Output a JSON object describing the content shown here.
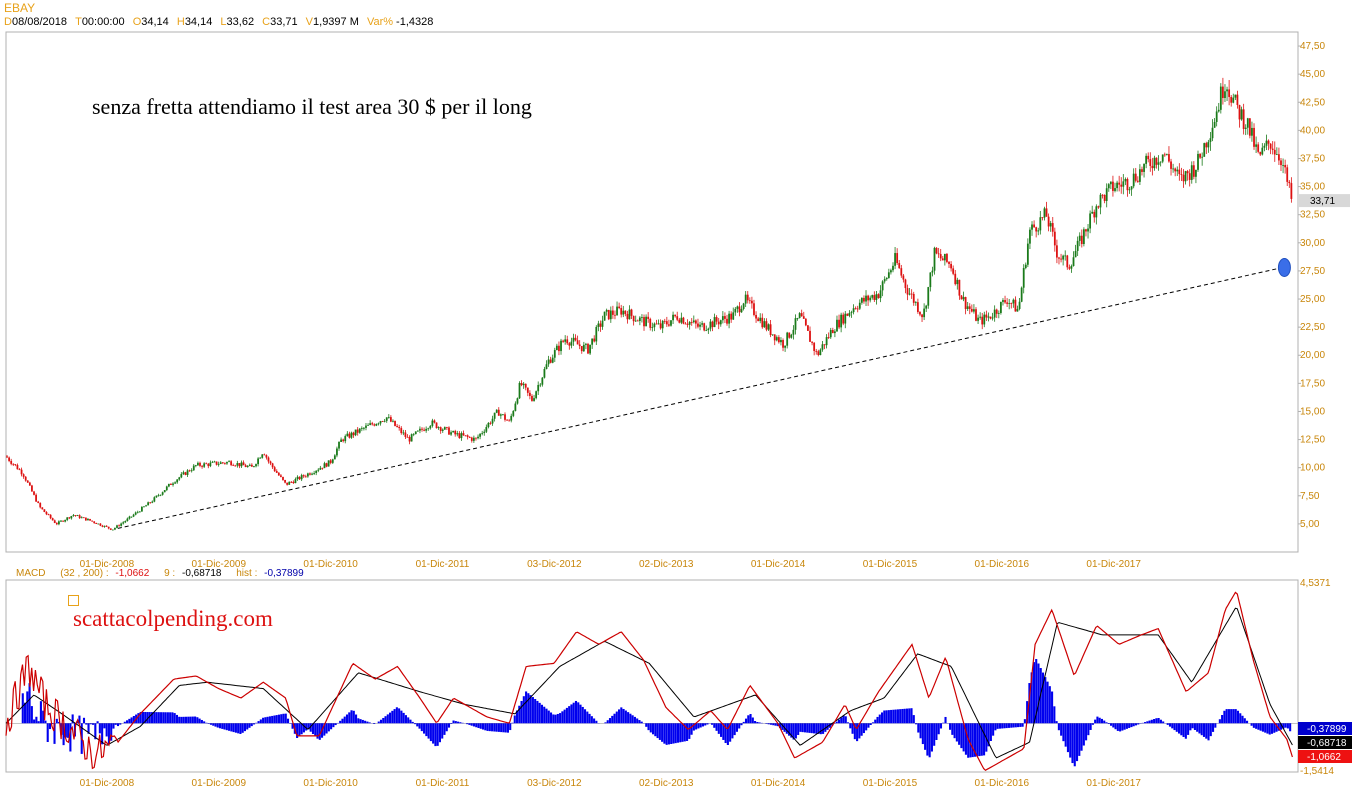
{
  "header": {
    "symbol": "EBAY",
    "fields": [
      {
        "k": "D",
        "v": "08/08/2018"
      },
      {
        "k": "T",
        "v": "00:00:00"
      },
      {
        "k": "O",
        "v": "34,14"
      },
      {
        "k": "H",
        "v": "34,14"
      },
      {
        "k": "L",
        "v": "33,62"
      },
      {
        "k": "C",
        "v": "33,71"
      },
      {
        "k": "V",
        "v": "1,9397 M"
      },
      {
        "k": "Var%",
        "v": "-1,4328"
      }
    ]
  },
  "annotation_text": "senza fretta attendiamo il test area 30 $ per il long",
  "watermark": "scattacolpending.com",
  "colors": {
    "accent": "#e8a21a",
    "up_candle": "#1a7a1a",
    "down_candle": "#dd1111",
    "macd_line": "#cc0000",
    "hist": "#0000ee",
    "marker": "#3a6ee8",
    "label_text": "#c8860a"
  },
  "chart_data": [
    {
      "type": "candlestick",
      "title": "EBAY",
      "ylim": [
        2.5,
        48.75
      ],
      "y_ticks": [
        "5,00",
        "7,50",
        "10,00",
        "12,50",
        "15,00",
        "17,50",
        "20,00",
        "22,50",
        "25,00",
        "27,50",
        "30,00",
        "32,50",
        "35,00",
        "37,50",
        "40,00",
        "42,50",
        "45,00",
        "47,50"
      ],
      "x_ticks": [
        "01-Dic-2008",
        "01-Dic-2009",
        "01-Dic-2010",
        "01-Dic-2011",
        "03-Dic-2012",
        "02-Dic-2013",
        "01-Dic-2014",
        "01-Dic-2015",
        "01-Dic-2016",
        "01-Dic-2017"
      ],
      "last_price_label": "33,71",
      "price_path": [
        [
          2008.0,
          11.0
        ],
        [
          2008.15,
          9.5
        ],
        [
          2008.3,
          6.5
        ],
        [
          2008.45,
          5.0
        ],
        [
          2008.6,
          5.8
        ],
        [
          2008.75,
          5.3
        ],
        [
          2008.95,
          4.5
        ],
        [
          2009.1,
          5.5
        ],
        [
          2009.3,
          7.0
        ],
        [
          2009.5,
          8.8
        ],
        [
          2009.7,
          10.2
        ],
        [
          2010.0,
          10.5
        ],
        [
          2010.2,
          10.0
        ],
        [
          2010.3,
          11.5
        ],
        [
          2010.35,
          10.5
        ],
        [
          2010.5,
          8.5
        ],
        [
          2010.65,
          9.2
        ],
        [
          2010.9,
          10.5
        ],
        [
          2011.0,
          12.5
        ],
        [
          2011.2,
          13.5
        ],
        [
          2011.4,
          14.5
        ],
        [
          2011.6,
          12.5
        ],
        [
          2011.8,
          14.0
        ],
        [
          2012.0,
          13.0
        ],
        [
          2012.2,
          12.5
        ],
        [
          2012.4,
          15.0
        ],
        [
          2012.5,
          14.0
        ],
        [
          2012.6,
          17.5
        ],
        [
          2012.7,
          16.0
        ],
        [
          2012.85,
          19.5
        ],
        [
          2013.0,
          21.5
        ],
        [
          2013.2,
          20.5
        ],
        [
          2013.35,
          23.5
        ],
        [
          2013.5,
          24.0
        ],
        [
          2013.7,
          23.0
        ],
        [
          2013.85,
          22.5
        ],
        [
          2014.0,
          23.5
        ],
        [
          2014.2,
          22.5
        ],
        [
          2014.5,
          23.5
        ],
        [
          2014.6,
          25.0
        ],
        [
          2014.8,
          22.5
        ],
        [
          2014.95,
          21.0
        ],
        [
          2015.1,
          23.5
        ],
        [
          2015.25,
          20.0
        ],
        [
          2015.4,
          22.5
        ],
        [
          2015.6,
          24.5
        ],
        [
          2015.8,
          25.5
        ],
        [
          2015.95,
          28.5
        ],
        [
          2016.05,
          26.0
        ],
        [
          2016.2,
          23.5
        ],
        [
          2016.3,
          29.0
        ],
        [
          2016.45,
          28.0
        ],
        [
          2016.55,
          25.0
        ],
        [
          2016.7,
          23.0
        ],
        [
          2016.8,
          23.5
        ],
        [
          2016.95,
          25.0
        ],
        [
          2017.05,
          24.0
        ],
        [
          2017.15,
          31.0
        ],
        [
          2017.3,
          32.5
        ],
        [
          2017.4,
          29.0
        ],
        [
          2017.5,
          28.0
        ],
        [
          2017.6,
          30.0
        ],
        [
          2017.75,
          33.5
        ],
        [
          2017.9,
          35.0
        ],
        [
          2018.05,
          35.5
        ],
        [
          2018.2,
          37.0
        ],
        [
          2018.35,
          38.0
        ],
        [
          2018.5,
          35.5
        ],
        [
          2018.65,
          37.0
        ],
        [
          2018.8,
          41.0
        ],
        [
          2018.9,
          44.5
        ],
        [
          2019.0,
          42.0
        ],
        [
          2019.1,
          40.5
        ],
        [
          2019.2,
          37.5
        ],
        [
          2019.3,
          39.0
        ],
        [
          2019.4,
          37.5
        ],
        [
          2019.5,
          33.5
        ]
      ],
      "trendline": {
        "from": [
          2009.0,
          4.6
        ],
        "to": [
          2019.5,
          28.0
        ],
        "style": "dashed"
      },
      "target_marker": {
        "x": 2019.5,
        "y": 27.8
      }
    },
    {
      "type": "line",
      "title": "MACD",
      "params": "(32 , 200) :",
      "values": [
        {
          "label": "",
          "value": "-1,0662"
        },
        {
          "label": "9 :",
          "value": "-0,68718"
        },
        {
          "label": "hist :",
          "value": "-0,37899"
        }
      ],
      "ylim": [
        -1.5414,
        4.5371
      ],
      "y_ticks": [
        "4,5371",
        "-1,5414"
      ],
      "right_labels": [
        {
          "value": "-0,37899",
          "color": "#0000cc"
        },
        {
          "value": "-0,68718",
          "color": "#000000"
        },
        {
          "value": "-1,0662",
          "color": "#ee1111"
        }
      ],
      "x_ticks": [
        "01-Dic-2008",
        "01-Dic-2009",
        "01-Dic-2010",
        "01-Dic-2011",
        "03-Dic-2012",
        "02-Dic-2013",
        "01-Dic-2014",
        "01-Dic-2015",
        "01-Dic-2016",
        "01-Dic-2017"
      ],
      "series": [
        {
          "values": [
            [
              2008.0,
              0.0
            ],
            [
              2008.2,
              1.8
            ],
            [
              2008.35,
              0.6
            ],
            [
              2008.6,
              -0.3
            ],
            [
              2008.8,
              -1.0
            ],
            [
              2009.0,
              -0.6
            ],
            [
              2009.2,
              0.3
            ],
            [
              2009.5,
              1.4
            ],
            [
              2009.7,
              1.5
            ],
            [
              2009.9,
              1.1
            ],
            [
              2010.1,
              0.8
            ],
            [
              2010.3,
              1.3
            ],
            [
              2010.5,
              0.8
            ],
            [
              2010.6,
              -0.4
            ],
            [
              2010.8,
              -0.4
            ],
            [
              2011.1,
              1.9
            ],
            [
              2011.3,
              1.4
            ],
            [
              2011.5,
              1.8
            ],
            [
              2011.7,
              0.8
            ],
            [
              2011.85,
              0.0
            ],
            [
              2012.0,
              0.8
            ],
            [
              2012.3,
              0.2
            ],
            [
              2012.5,
              0.0
            ],
            [
              2012.65,
              1.8
            ],
            [
              2012.9,
              1.9
            ],
            [
              2013.1,
              2.9
            ],
            [
              2013.3,
              2.5
            ],
            [
              2013.5,
              2.9
            ],
            [
              2013.7,
              2.0
            ],
            [
              2013.9,
              0.5
            ],
            [
              2014.1,
              -0.2
            ],
            [
              2014.3,
              0.4
            ],
            [
              2014.45,
              -0.2
            ],
            [
              2014.65,
              1.2
            ],
            [
              2014.9,
              0.0
            ],
            [
              2015.05,
              -1.1
            ],
            [
              2015.3,
              -0.6
            ],
            [
              2015.5,
              0.6
            ],
            [
              2015.6,
              -0.2
            ],
            [
              2015.8,
              1.0
            ],
            [
              2016.1,
              2.5
            ],
            [
              2016.25,
              0.8
            ],
            [
              2016.4,
              2.1
            ],
            [
              2016.6,
              -0.5
            ],
            [
              2016.75,
              -1.5
            ],
            [
              2016.95,
              -1.1
            ],
            [
              2017.1,
              -0.8
            ],
            [
              2017.2,
              2.5
            ],
            [
              2017.35,
              3.6
            ],
            [
              2017.55,
              1.5
            ],
            [
              2017.75,
              3.1
            ],
            [
              2017.95,
              2.5
            ],
            [
              2018.15,
              2.8
            ],
            [
              2018.3,
              3.0
            ],
            [
              2018.55,
              1.0
            ],
            [
              2018.75,
              1.6
            ],
            [
              2018.9,
              3.6
            ],
            [
              2019.0,
              4.2
            ],
            [
              2019.15,
              2.0
            ],
            [
              2019.3,
              0.2
            ],
            [
              2019.45,
              -0.5
            ],
            [
              2019.5,
              -1.0662
            ]
          ]
        },
        {
          "values": [
            [
              2008.0,
              0.0
            ],
            [
              2008.25,
              0.9
            ],
            [
              2008.5,
              0.3
            ],
            [
              2008.9,
              -0.7
            ],
            [
              2009.2,
              -0.1
            ],
            [
              2009.55,
              1.2
            ],
            [
              2009.8,
              1.3
            ],
            [
              2010.3,
              1.1
            ],
            [
              2010.7,
              -0.2
            ],
            [
              2011.15,
              1.6
            ],
            [
              2011.7,
              1.0
            ],
            [
              2012.1,
              0.6
            ],
            [
              2012.55,
              0.3
            ],
            [
              2012.95,
              1.8
            ],
            [
              2013.35,
              2.6
            ],
            [
              2013.75,
              1.9
            ],
            [
              2014.15,
              0.2
            ],
            [
              2014.7,
              0.9
            ],
            [
              2015.1,
              -0.7
            ],
            [
              2015.55,
              0.4
            ],
            [
              2015.85,
              0.8
            ],
            [
              2016.15,
              2.2
            ],
            [
              2016.45,
              1.8
            ],
            [
              2016.85,
              -1.1
            ],
            [
              2017.15,
              -0.6
            ],
            [
              2017.4,
              3.2
            ],
            [
              2017.8,
              2.8
            ],
            [
              2018.3,
              2.8
            ],
            [
              2018.6,
              1.3
            ],
            [
              2019.0,
              3.7
            ],
            [
              2019.3,
              0.6
            ],
            [
              2019.5,
              -0.68718
            ]
          ]
        }
      ]
    }
  ]
}
